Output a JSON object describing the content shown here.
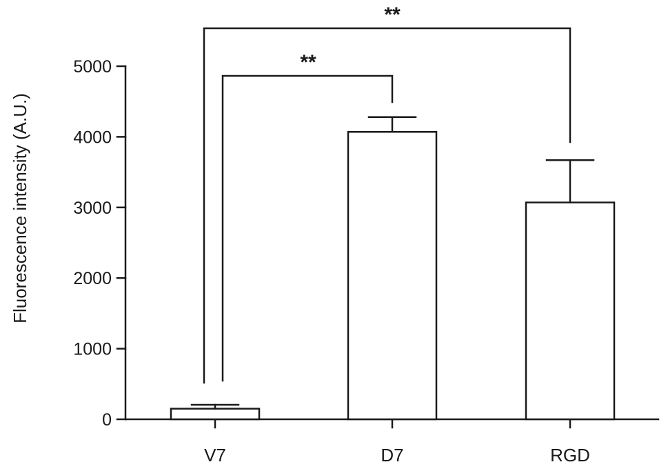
{
  "chart_data": {
    "type": "bar",
    "categories": [
      "V7",
      "D7",
      "RGD"
    ],
    "values": [
      150,
      4070,
      3070
    ],
    "errors": [
      55,
      210,
      600
    ],
    "title": "",
    "xlabel": "",
    "ylabel": "Fluorescence intensity (A.U.)",
    "ylim": [
      0,
      5000
    ],
    "yticks": [
      0,
      1000,
      2000,
      3000,
      4000,
      5000
    ],
    "ytick_labels": [
      "0",
      "1000",
      "2000",
      "3000",
      "4000",
      "5000"
    ],
    "bar_fill": "#ffffff",
    "bar_edge": "#1a1a1a",
    "grid": false,
    "legend": "none",
    "significance": [
      {
        "from": "V7",
        "to": "D7",
        "label": "**"
      },
      {
        "from": "V7",
        "to": "RGD",
        "label": "**"
      }
    ]
  }
}
